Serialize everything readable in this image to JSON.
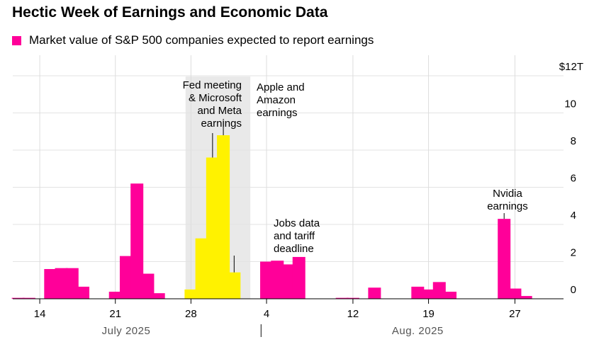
{
  "chart_data": {
    "type": "bar",
    "title": "Hectic Week of Earnings and Economic Data",
    "legend": [
      {
        "label": "Market value of S&P 500 companies expected to report earnings",
        "color": "#ff0099"
      }
    ],
    "legend_position": "top-left",
    "highlight_color": "#fff200",
    "highlight_band_color": "#e9e9e9",
    "bar_color": "#ff0099",
    "y_unit": "trillions USD",
    "ylim": [
      0,
      12
    ],
    "y_ticks": [
      {
        "value": 0,
        "label": "0"
      },
      {
        "value": 2,
        "label": "2"
      },
      {
        "value": 4,
        "label": "4"
      },
      {
        "value": 6,
        "label": "6"
      },
      {
        "value": 8,
        "label": "8"
      },
      {
        "value": 10,
        "label": "10"
      },
      {
        "value": 12,
        "label": "$12T"
      }
    ],
    "y_axis_side": "right",
    "grid": "vertical",
    "x_ticks": [
      {
        "date": "2025-07-14",
        "label": "14"
      },
      {
        "date": "2025-07-21",
        "label": "21"
      },
      {
        "date": "2025-07-28",
        "label": "28"
      },
      {
        "date": "2025-08-04",
        "label": "4"
      },
      {
        "date": "2025-08-12",
        "label": "12"
      },
      {
        "date": "2025-08-19",
        "label": "19"
      },
      {
        "date": "2025-08-27",
        "label": "27"
      }
    ],
    "months": [
      {
        "label": "July 2025",
        "date": "2025-07-22"
      },
      {
        "label": "Aug. 2025",
        "date": "2025-08-18"
      }
    ],
    "month_separator_date": "2025-08-03",
    "x_range": [
      "2025-07-12",
      "2025-09-01"
    ],
    "highlight_range": [
      "2025-07-28",
      "2025-08-02"
    ],
    "bars": [
      {
        "date": "2025-07-12",
        "value": 0.05
      },
      {
        "date": "2025-07-13",
        "value": 0.05
      },
      {
        "date": "2025-07-15",
        "value": 1.6
      },
      {
        "date": "2025-07-16",
        "value": 1.65
      },
      {
        "date": "2025-07-17",
        "value": 1.65
      },
      {
        "date": "2025-07-18",
        "value": 0.65
      },
      {
        "date": "2025-07-21",
        "value": 0.38
      },
      {
        "date": "2025-07-22",
        "value": 2.3
      },
      {
        "date": "2025-07-23",
        "value": 6.2
      },
      {
        "date": "2025-07-24",
        "value": 1.35
      },
      {
        "date": "2025-07-25",
        "value": 0.3
      },
      {
        "date": "2025-07-28",
        "value": 0.5,
        "highlight": true
      },
      {
        "date": "2025-07-29",
        "value": 3.25,
        "highlight": true
      },
      {
        "date": "2025-07-30",
        "value": 7.6,
        "highlight": true
      },
      {
        "date": "2025-07-31",
        "value": 8.8,
        "highlight": true
      },
      {
        "date": "2025-08-01",
        "value": 1.42,
        "highlight": true
      },
      {
        "date": "2025-08-04",
        "value": 2.0
      },
      {
        "date": "2025-08-05",
        "value": 2.05
      },
      {
        "date": "2025-08-06",
        "value": 1.85
      },
      {
        "date": "2025-08-07",
        "value": 2.25
      },
      {
        "date": "2025-08-11",
        "value": 0.05
      },
      {
        "date": "2025-08-12",
        "value": 0.05
      },
      {
        "date": "2025-08-14",
        "value": 0.6
      },
      {
        "date": "2025-08-18",
        "value": 0.65
      },
      {
        "date": "2025-08-19",
        "value": 0.5
      },
      {
        "date": "2025-08-20",
        "value": 0.9
      },
      {
        "date": "2025-08-21",
        "value": 0.38
      },
      {
        "date": "2025-08-26",
        "value": 4.3
      },
      {
        "date": "2025-08-27",
        "value": 0.55
      },
      {
        "date": "2025-08-28",
        "value": 0.15
      }
    ],
    "annotations": [
      {
        "id": "fed",
        "lines": [
          "Fed meeting",
          "& Microsoft",
          "and Meta",
          "earnings"
        ],
        "date": "2025-07-30",
        "align": "end"
      },
      {
        "id": "apple",
        "lines": [
          "Apple and",
          "Amazon",
          "earnings"
        ],
        "date": "2025-07-31",
        "align": "start"
      },
      {
        "id": "jobs",
        "lines": [
          "Jobs data",
          "and tariff",
          "deadline"
        ],
        "date": "2025-08-01",
        "align": "start"
      },
      {
        "id": "nvidia",
        "lines": [
          "Nvidia",
          "earnings"
        ],
        "date": "2025-08-26",
        "align": "middle"
      }
    ]
  }
}
